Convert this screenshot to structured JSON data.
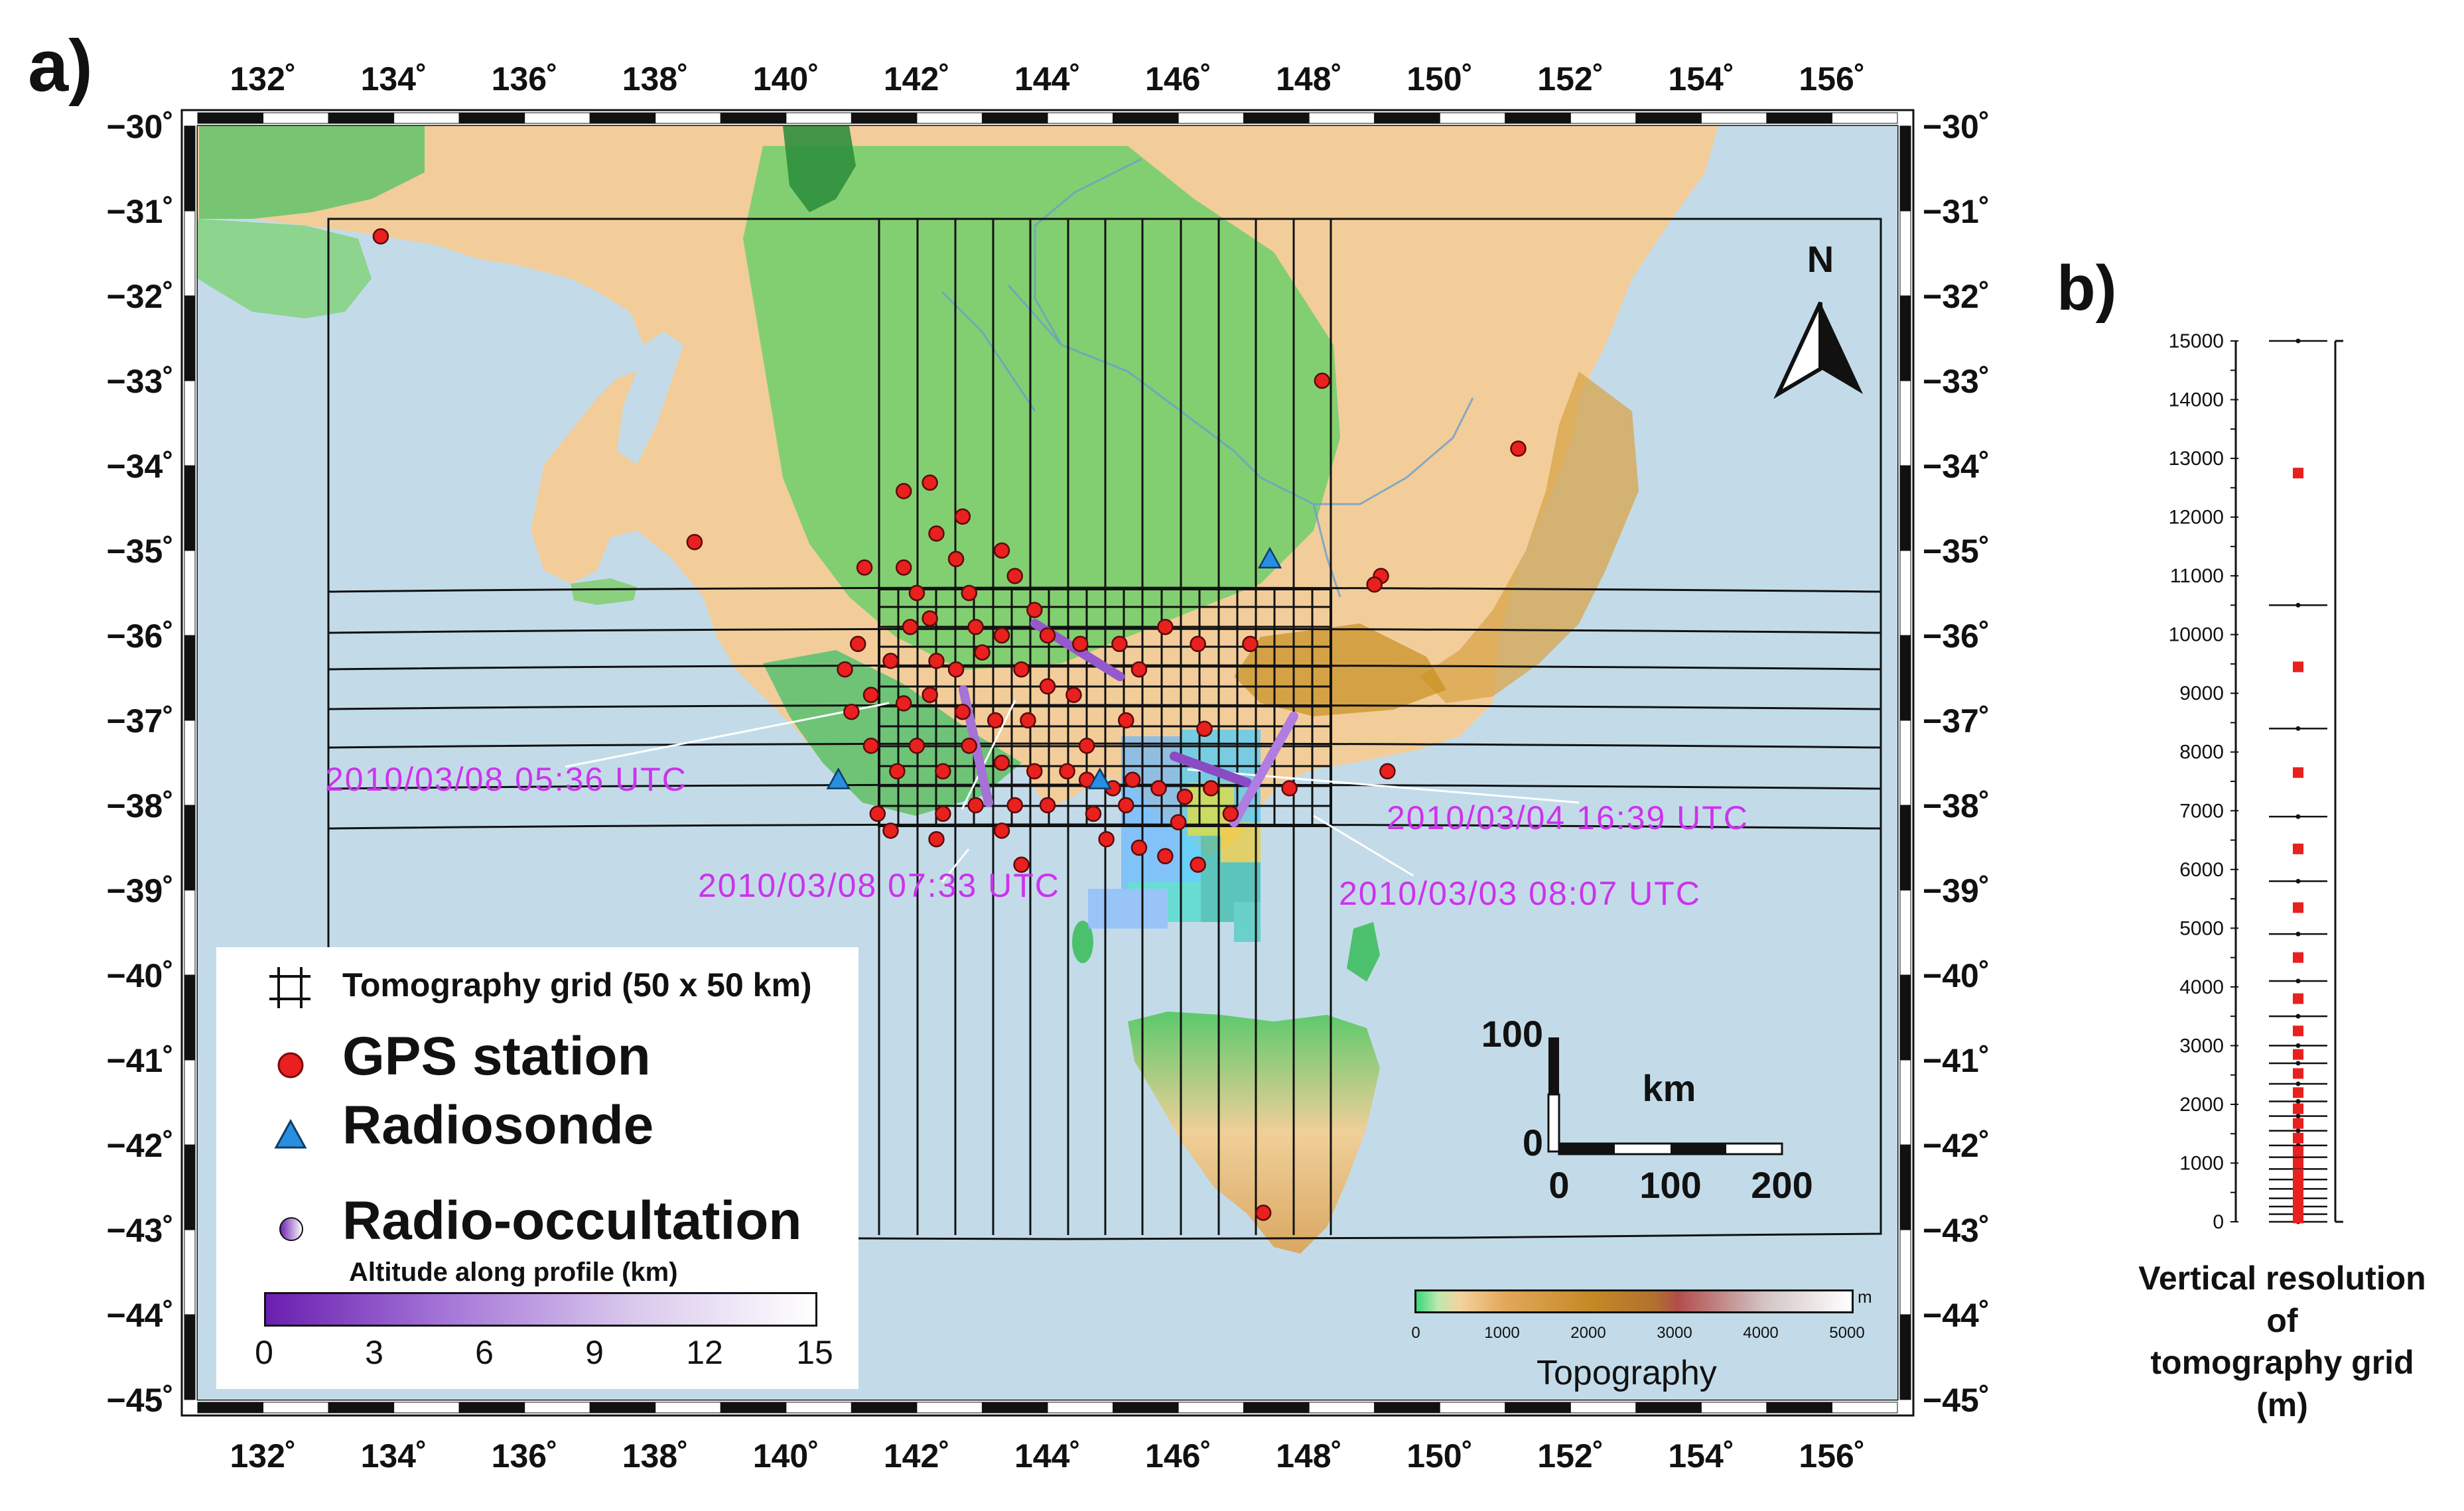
{
  "panel_a_label": "a)",
  "panel_b_label": "b)",
  "map": {
    "lon_ticks": [
      "132˚",
      "134˚",
      "136˚",
      "138˚",
      "140˚",
      "142˚",
      "144˚",
      "146˚",
      "148˚",
      "150˚",
      "152˚",
      "154˚",
      "156˚"
    ],
    "lat_ticks": [
      "−30˚",
      "−31˚",
      "−32˚",
      "−33˚",
      "−34˚",
      "−35˚",
      "−36˚",
      "−37˚",
      "−38˚",
      "−39˚",
      "−40˚",
      "−41˚",
      "−42˚",
      "−43˚",
      "−44˚",
      "−45˚"
    ],
    "lon_range": [
      131,
      157
    ],
    "lat_range": [
      -45,
      -30
    ],
    "north_arrow_label": "N",
    "colors": {
      "ocean": "#c3dbe9",
      "land_low": "#3dc46e",
      "land_mid": "#f1cc96",
      "land_high": "#c8901f",
      "gps": "#e8201e",
      "radiosonde": "#2a8ee0",
      "ro_track": "#9a57c9"
    },
    "occultation_labels": [
      {
        "text": "2010/03/08  05:36  UTC"
      },
      {
        "text": "2010/03/08  07:33  UTC"
      },
      {
        "text": "2010/03/04  16:39  UTC"
      },
      {
        "text": "2010/03/03  08:07  UTC"
      }
    ],
    "gps_stations": [
      {
        "lon": 133.8,
        "lat": -31.3
      },
      {
        "lon": 138.6,
        "lat": -34.9
      },
      {
        "lon": 148.2,
        "lat": -33.0
      },
      {
        "lon": 151.2,
        "lat": -33.8
      },
      {
        "lon": 149.1,
        "lat": -35.3
      },
      {
        "lon": 149.0,
        "lat": -35.4
      },
      {
        "lon": 149.2,
        "lat": -37.6
      },
      {
        "lon": 147.7,
        "lat": -37.8
      },
      {
        "lon": 147.3,
        "lat": -42.8
      },
      {
        "lon": 141.8,
        "lat": -34.3
      },
      {
        "lon": 142.2,
        "lat": -34.2
      },
      {
        "lon": 142.7,
        "lat": -34.6
      },
      {
        "lon": 142.3,
        "lat": -34.8
      },
      {
        "lon": 141.2,
        "lat": -35.2
      },
      {
        "lon": 141.8,
        "lat": -35.2
      },
      {
        "lon": 142.6,
        "lat": -35.1
      },
      {
        "lon": 143.3,
        "lat": -35.0
      },
      {
        "lon": 143.5,
        "lat": -35.3
      },
      {
        "lon": 142.0,
        "lat": -35.5
      },
      {
        "lon": 142.8,
        "lat": -35.5
      },
      {
        "lon": 143.8,
        "lat": -35.7
      },
      {
        "lon": 142.2,
        "lat": -35.8
      },
      {
        "lon": 141.9,
        "lat": -35.9
      },
      {
        "lon": 142.9,
        "lat": -35.9
      },
      {
        "lon": 143.3,
        "lat": -36.0
      },
      {
        "lon": 144.0,
        "lat": -36.0
      },
      {
        "lon": 144.5,
        "lat": -36.1
      },
      {
        "lon": 145.1,
        "lat": -36.1
      },
      {
        "lon": 145.8,
        "lat": -35.9
      },
      {
        "lon": 146.3,
        "lat": -36.1
      },
      {
        "lon": 147.1,
        "lat": -36.1
      },
      {
        "lon": 141.1,
        "lat": -36.1
      },
      {
        "lon": 140.9,
        "lat": -36.4
      },
      {
        "lon": 141.6,
        "lat": -36.3
      },
      {
        "lon": 142.3,
        "lat": -36.3
      },
      {
        "lon": 142.6,
        "lat": -36.4
      },
      {
        "lon": 143.0,
        "lat": -36.2
      },
      {
        "lon": 143.6,
        "lat": -36.4
      },
      {
        "lon": 144.0,
        "lat": -36.6
      },
      {
        "lon": 144.4,
        "lat": -36.7
      },
      {
        "lon": 145.4,
        "lat": -36.4
      },
      {
        "lon": 141.0,
        "lat": -36.9
      },
      {
        "lon": 141.3,
        "lat": -36.7
      },
      {
        "lon": 141.8,
        "lat": -36.8
      },
      {
        "lon": 142.2,
        "lat": -36.7
      },
      {
        "lon": 142.7,
        "lat": -36.9
      },
      {
        "lon": 143.2,
        "lat": -37.0
      },
      {
        "lon": 143.7,
        "lat": -37.0
      },
      {
        "lon": 145.2,
        "lat": -37.0
      },
      {
        "lon": 144.6,
        "lat": -37.3
      },
      {
        "lon": 146.4,
        "lat": -37.1
      },
      {
        "lon": 141.3,
        "lat": -37.3
      },
      {
        "lon": 141.7,
        "lat": -37.6
      },
      {
        "lon": 142.0,
        "lat": -37.3
      },
      {
        "lon": 142.4,
        "lat": -37.6
      },
      {
        "lon": 142.8,
        "lat": -37.3
      },
      {
        "lon": 143.3,
        "lat": -37.5
      },
      {
        "lon": 143.8,
        "lat": -37.6
      },
      {
        "lon": 144.3,
        "lat": -37.6
      },
      {
        "lon": 144.6,
        "lat": -37.7
      },
      {
        "lon": 145.0,
        "lat": -37.8
      },
      {
        "lon": 145.3,
        "lat": -37.7
      },
      {
        "lon": 145.7,
        "lat": -37.8
      },
      {
        "lon": 146.1,
        "lat": -37.9
      },
      {
        "lon": 146.5,
        "lat": -37.8
      },
      {
        "lon": 141.4,
        "lat": -38.1
      },
      {
        "lon": 142.4,
        "lat": -38.1
      },
      {
        "lon": 142.9,
        "lat": -38.0
      },
      {
        "lon": 143.5,
        "lat": -38.0
      },
      {
        "lon": 144.0,
        "lat": -38.0
      },
      {
        "lon": 144.7,
        "lat": -38.1
      },
      {
        "lon": 145.2,
        "lat": -38.0
      },
      {
        "lon": 146.0,
        "lat": -38.2
      },
      {
        "lon": 146.8,
        "lat": -38.1
      },
      {
        "lon": 141.6,
        "lat": -38.3
      },
      {
        "lon": 142.3,
        "lat": -38.4
      },
      {
        "lon": 143.3,
        "lat": -38.3
      },
      {
        "lon": 143.6,
        "lat": -38.7
      },
      {
        "lon": 144.9,
        "lat": -38.4
      },
      {
        "lon": 145.4,
        "lat": -38.5
      },
      {
        "lon": 145.8,
        "lat": -38.6
      },
      {
        "lon": 146.3,
        "lat": -38.7
      }
    ],
    "radiosondes": [
      {
        "lon": 147.4,
        "lat": -35.1
      },
      {
        "lon": 140.8,
        "lat": -37.7
      },
      {
        "lon": 144.8,
        "lat": -37.7
      }
    ]
  },
  "legend": {
    "grid_label": "Tomography grid  (50 x 50 km)",
    "gps_label": "GPS  station",
    "radiosonde_label": "Radiosonde",
    "ro_label": "Radio-occultation",
    "altitude_label": "Altitude  along  profile  (km)",
    "altitude_ticks": [
      "0",
      "3",
      "6",
      "9",
      "12",
      "15"
    ]
  },
  "scale_bar": {
    "vertical_label": "100",
    "zero_label": "0",
    "unit": "km",
    "ticks": [
      "0",
      "100",
      "200"
    ]
  },
  "topography": {
    "ticks": [
      "0",
      "1000",
      "2000",
      "3000",
      "4000",
      "5000"
    ],
    "unit": "m",
    "label": "Topography"
  },
  "vertical_resolution": {
    "ticks": [
      "15000",
      "14000",
      "13000",
      "12000",
      "11000",
      "10000",
      "9000",
      "8000",
      "7000",
      "6000",
      "5000",
      "4000",
      "3000",
      "2000",
      "1000",
      "0"
    ],
    "levels_m": [
      0,
      130,
      260,
      400,
      560,
      720,
      900,
      1100,
      1300,
      1550,
      1800,
      2050,
      2350,
      2700,
      3000,
      3500,
      4100,
      4900,
      5800,
      6900,
      8400,
      10500,
      15000
    ],
    "mids_m": [
      65,
      195,
      330,
      480,
      640,
      810,
      1000,
      1200,
      1425,
      1675,
      1925,
      2200,
      2525,
      2850,
      3250,
      3800,
      4500,
      5350,
      6350,
      7650,
      9450,
      12750
    ],
    "caption": "Vertical  resolution\nof\ntomography  grid\n(m)"
  }
}
